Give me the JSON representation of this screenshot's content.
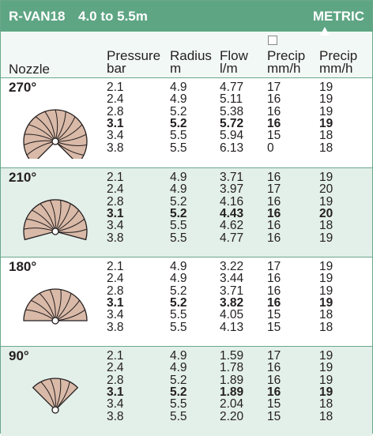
{
  "header": {
    "model": "R-VAN18",
    "range": "4.0 to 5.5m",
    "units": "METRIC"
  },
  "columns": {
    "nozzle": "Nozzle",
    "pressure": [
      "Pressure",
      "bar"
    ],
    "radius": [
      "Radius",
      "m"
    ],
    "flow": [
      "Flow",
      "l/m"
    ],
    "precip_square": [
      "Precip",
      "mm/h"
    ],
    "precip_triangle": [
      "Precip",
      "mm/h"
    ]
  },
  "symbols": {
    "precip_square": "square-icon",
    "precip_triangle": "triangle-icon"
  },
  "colors": {
    "header_green": "#5ea584",
    "alt_row": "#e3efe9",
    "nozzle_fill": "#d9b9a7"
  },
  "sections": [
    {
      "nozzle": "270°",
      "arc": 270,
      "highlight_row": 3,
      "rows": [
        [
          "2.1",
          "4.9",
          "4.77",
          "17",
          "19"
        ],
        [
          "2.4",
          "4.9",
          "5.11",
          "16",
          "19"
        ],
        [
          "2.8",
          "5.2",
          "5.38",
          "16",
          "19"
        ],
        [
          "3.1",
          "5.2",
          "5.72",
          "16",
          "19"
        ],
        [
          "3.4",
          "5.5",
          "5.94",
          "15",
          "18"
        ],
        [
          "3.8",
          "5.5",
          "6.13",
          "0",
          "18"
        ]
      ]
    },
    {
      "nozzle": "210°",
      "arc": 210,
      "highlight_row": 3,
      "rows": [
        [
          "2.1",
          "4.9",
          "3.71",
          "16",
          "19"
        ],
        [
          "2.4",
          "4.9",
          "3.97",
          "17",
          "20"
        ],
        [
          "2.8",
          "5.2",
          "4.16",
          "16",
          "19"
        ],
        [
          "3.1",
          "5.2",
          "4.43",
          "16",
          "20"
        ],
        [
          "3.4",
          "5.5",
          "4.62",
          "16",
          "18"
        ],
        [
          "3.8",
          "5.5",
          "4.77",
          "16",
          "19"
        ]
      ]
    },
    {
      "nozzle": "180°",
      "arc": 180,
      "highlight_row": 3,
      "rows": [
        [
          "2.1",
          "4.9",
          "3.22",
          "17",
          "19"
        ],
        [
          "2.4",
          "4.9",
          "3.44",
          "16",
          "19"
        ],
        [
          "2.8",
          "5.2",
          "3.71",
          "16",
          "19"
        ],
        [
          "3.1",
          "5.2",
          "3.82",
          "16",
          "19"
        ],
        [
          "3.4",
          "5.5",
          "4.05",
          "15",
          "18"
        ],
        [
          "3.8",
          "5.5",
          "4.13",
          "15",
          "18"
        ]
      ]
    },
    {
      "nozzle": "90°",
      "arc": 90,
      "highlight_row": 3,
      "rows": [
        [
          "2.1",
          "4.9",
          "1.59",
          "17",
          "19"
        ],
        [
          "2.4",
          "4.9",
          "1.78",
          "16",
          "19"
        ],
        [
          "2.8",
          "5.2",
          "1.89",
          "16",
          "19"
        ],
        [
          "3.1",
          "5.2",
          "1.89",
          "16",
          "19"
        ],
        [
          "3.4",
          "5.5",
          "2.04",
          "15",
          "18"
        ],
        [
          "3.8",
          "5.5",
          "2.20",
          "15",
          "18"
        ]
      ]
    }
  ]
}
